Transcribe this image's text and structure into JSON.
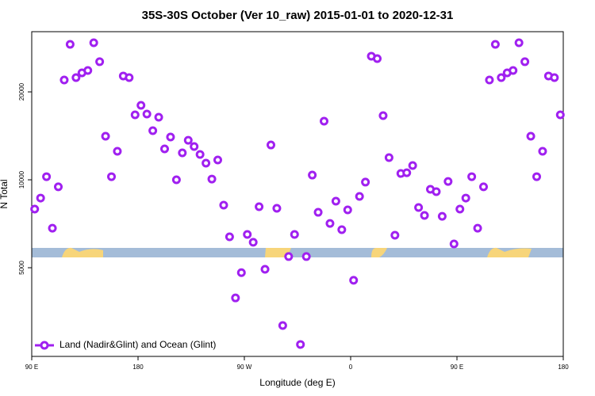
{
  "chart_data": {
    "type": "scatter",
    "title": "35S-30S October (Ver 10_raw)   2015-01-01 to 2020-12-31",
    "x_label": "Longitude (deg E)",
    "y_label": "N Total",
    "log_y": true,
    "legend_position": "lower left",
    "xlim": [
      90,
      540
    ],
    "xticks": [
      {
        "value": 90,
        "label": "90 E"
      },
      180,
      {
        "value": 270,
        "label": "90 W"
      },
      {
        "value": 360,
        "label": "0"
      },
      {
        "value": 450,
        "label": "90 E"
      },
      {
        "value": 540,
        "label": "180"
      }
    ],
    "ylim": [
      2485,
      32150
    ],
    "yticks": [
      5000,
      10000,
      20000
    ],
    "series": [
      {
        "name": "Land (Nadir&Glint) and Ocean (Glint)",
        "color": "#a020f0",
        "x": [
          92.5,
          97.5,
          102.5,
          107.5,
          112.5,
          117.5,
          122.5,
          127.5,
          132.5,
          137.5,
          142.5,
          147.5,
          152.5,
          157.5,
          162.5,
          167.5,
          172.5,
          177.5,
          182.5,
          187.5,
          192.5,
          197.5,
          202.5,
          207.5,
          212.5,
          217.5,
          222.5,
          227.5,
          232.5,
          237.5,
          242.5,
          247.5,
          252.5,
          257.5,
          262.5,
          267.5,
          272.5,
          277.5,
          282.5,
          287.5,
          292.5,
          297.5,
          302.5,
          307.5,
          312.5,
          317.5,
          322.5,
          327.5,
          332.5,
          337.5,
          342.5,
          347.5,
          352.5,
          357.5,
          362.5,
          367.5,
          372.5,
          377.5,
          382.5,
          387.5,
          392.5,
          397.5,
          402.5,
          407.5,
          412.5,
          417.5,
          422.5,
          427.5,
          432.5,
          437.5,
          442.5,
          447.5,
          452.5,
          457.5,
          462.5,
          467.5,
          472.5,
          477.5,
          482.5,
          487.5,
          492.5,
          497.5,
          502.5,
          507.5,
          512.5,
          517.5,
          522.5,
          527.5,
          532.5,
          537.5
        ],
        "values": [
          7940,
          8660,
          10250,
          6830,
          9460,
          21960,
          29100,
          22380,
          23240,
          23680,
          29460,
          25370,
          14100,
          10250,
          12520,
          22670,
          22380,
          16690,
          17990,
          16790,
          14730,
          16380,
          12760,
          14010,
          10000,
          12370,
          13660,
          13000,
          12210,
          11400,
          10060,
          11690,
          8190,
          6380,
          3940,
          4810,
          6500,
          6110,
          8090,
          4940,
          13160,
          7990,
          3170,
          5460,
          6500,
          2730,
          5460,
          10380,
          7740,
          15880,
          7090,
          8450,
          6750,
          7890,
          4530,
          8770,
          9820,
          26500,
          26000,
          16590,
          11910,
          6460,
          10510,
          10570,
          11190,
          8040,
          7550,
          9280,
          9110,
          7500,
          9870,
          6030,
          7940,
          8660,
          10250,
          6830,
          9460,
          21960,
          29100,
          22380,
          23240,
          23680,
          29460,
          25370,
          14100,
          10250,
          12520,
          22670,
          22380,
          16690
        ]
      }
    ]
  }
}
